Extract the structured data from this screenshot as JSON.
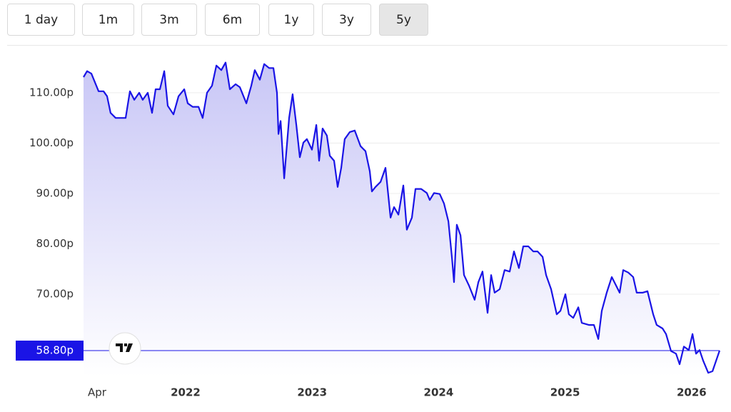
{
  "range_buttons": {
    "options": [
      "1 day",
      "1m",
      "3m",
      "6m",
      "1y",
      "3y",
      "5y"
    ],
    "selected": 6
  },
  "chart_data": {
    "type": "line",
    "x": [
      2021.193,
      2021.221,
      2021.255,
      2021.283,
      2021.312,
      2021.351,
      2021.379,
      2021.407,
      2021.447,
      2021.492,
      2021.526,
      2021.56,
      2021.594,
      2021.633,
      2021.661,
      2021.701,
      2021.735,
      2021.763,
      2021.797,
      2021.831,
      2021.859,
      2021.904,
      2021.944,
      2021.989,
      2022.017,
      2022.056,
      2022.102,
      2022.135,
      2022.169,
      2022.209,
      2022.243,
      2022.282,
      2022.316,
      2022.35,
      2022.395,
      2022.429,
      2022.48,
      2022.519,
      2022.547,
      2022.587,
      2022.621,
      2022.66,
      2022.694,
      2022.722,
      2022.734,
      2022.751,
      2022.779,
      2022.818,
      2022.846,
      2022.875,
      2022.903,
      2022.931,
      2022.959,
      2022.999,
      2023.033,
      2023.055,
      2023.083,
      2023.117,
      2023.14,
      2023.174,
      2023.202,
      2023.23,
      2023.258,
      2023.298,
      2023.337,
      2023.383,
      2023.422,
      2023.456,
      2023.473,
      2023.501,
      2023.541,
      2023.58,
      2023.62,
      2023.648,
      2023.682,
      2023.721,
      2023.749,
      2023.789,
      2023.817,
      2023.862,
      2023.907,
      2023.93,
      2023.964,
      2024.009,
      2024.043,
      2024.077,
      2024.105,
      2024.122,
      2024.144,
      2024.173,
      2024.201,
      2024.24,
      2024.285,
      2024.314,
      2024.347,
      2024.387,
      2024.415,
      2024.443,
      2024.483,
      2024.522,
      2024.562,
      2024.596,
      2024.635,
      2024.669,
      2024.709,
      2024.748,
      2024.782,
      2024.822,
      2024.85,
      2024.889,
      2024.934,
      2024.963,
      2025.002,
      2025.03,
      2025.064,
      2025.104,
      2025.132,
      2025.188,
      2025.228,
      2025.262,
      2025.29,
      2025.329,
      2025.369,
      2025.397,
      2025.431,
      2025.459,
      2025.499,
      2025.538,
      2025.566,
      2025.612,
      2025.651,
      2025.696,
      2025.724,
      2025.77,
      2025.798,
      2025.837,
      2025.877,
      2025.905,
      2025.939,
      2025.978,
      2026.007,
      2026.035,
      2026.063,
      2026.091,
      2026.131,
      2026.165,
      2026.221
    ],
    "series": [
      {
        "color": "#1a14e6",
        "values": [
          113.1,
          114.3,
          113.8,
          112.1,
          110.3,
          110.3,
          109.3,
          106.0,
          105.0,
          105.0,
          105.0,
          110.3,
          108.6,
          110.0,
          108.6,
          110.0,
          106.0,
          110.7,
          110.7,
          114.3,
          107.4,
          105.7,
          109.3,
          110.7,
          107.9,
          107.2,
          107.2,
          105.0,
          110.0,
          111.4,
          115.4,
          114.5,
          116.0,
          110.7,
          111.7,
          111.1,
          107.9,
          111.4,
          114.5,
          112.6,
          115.7,
          114.9,
          114.9,
          110.0,
          101.8,
          104.4,
          93.0,
          105.0,
          109.7,
          103.6,
          97.2,
          100.1,
          100.8,
          98.7,
          103.6,
          96.5,
          102.9,
          101.5,
          97.5,
          96.5,
          91.3,
          95.1,
          100.8,
          102.2,
          102.5,
          99.4,
          98.4,
          94.4,
          90.4,
          91.3,
          92.3,
          95.1,
          85.2,
          87.3,
          85.8,
          91.6,
          82.8,
          85.2,
          90.9,
          90.9,
          90.1,
          88.7,
          90.1,
          89.9,
          88.0,
          84.5,
          77.4,
          72.4,
          83.8,
          81.7,
          73.8,
          71.7,
          68.9,
          72.4,
          74.5,
          66.3,
          73.8,
          70.3,
          71.0,
          74.8,
          74.5,
          78.5,
          75.2,
          79.5,
          79.5,
          78.5,
          78.5,
          77.4,
          73.8,
          71.0,
          66.0,
          66.7,
          70.0,
          66.0,
          65.3,
          67.4,
          64.3,
          63.9,
          63.9,
          61.1,
          66.7,
          70.3,
          73.4,
          72.0,
          70.3,
          74.8,
          74.3,
          73.4,
          70.3,
          70.3,
          70.6,
          66.0,
          63.9,
          63.2,
          62.1,
          58.7,
          58.2,
          56.1,
          59.6,
          58.9,
          62.1,
          58.2,
          58.9,
          56.8,
          54.4,
          54.7,
          58.8
        ]
      }
    ],
    "xlim": [
      2021.193,
      2026.221
    ],
    "xticks": [
      {
        "value": 2021.3,
        "label": "Apr"
      },
      {
        "value": 2022,
        "label": "2022"
      },
      {
        "value": 2023,
        "label": "2023"
      },
      {
        "value": 2024,
        "label": "2024"
      },
      {
        "value": 2025,
        "label": "2025"
      },
      {
        "value": 2026,
        "label": "2026"
      }
    ],
    "ylim": [
      53.7,
      119.2
    ],
    "yticks": [
      {
        "value": 70,
        "label": "70.00p"
      },
      {
        "value": 80,
        "label": "80.00p"
      },
      {
        "value": 90,
        "label": "90.00p"
      },
      {
        "value": 100,
        "label": "100.00p"
      },
      {
        "value": 110,
        "label": "110.00p"
      }
    ],
    "grid": true,
    "last_price": {
      "value": 58.8,
      "label": "58.80p"
    }
  }
}
